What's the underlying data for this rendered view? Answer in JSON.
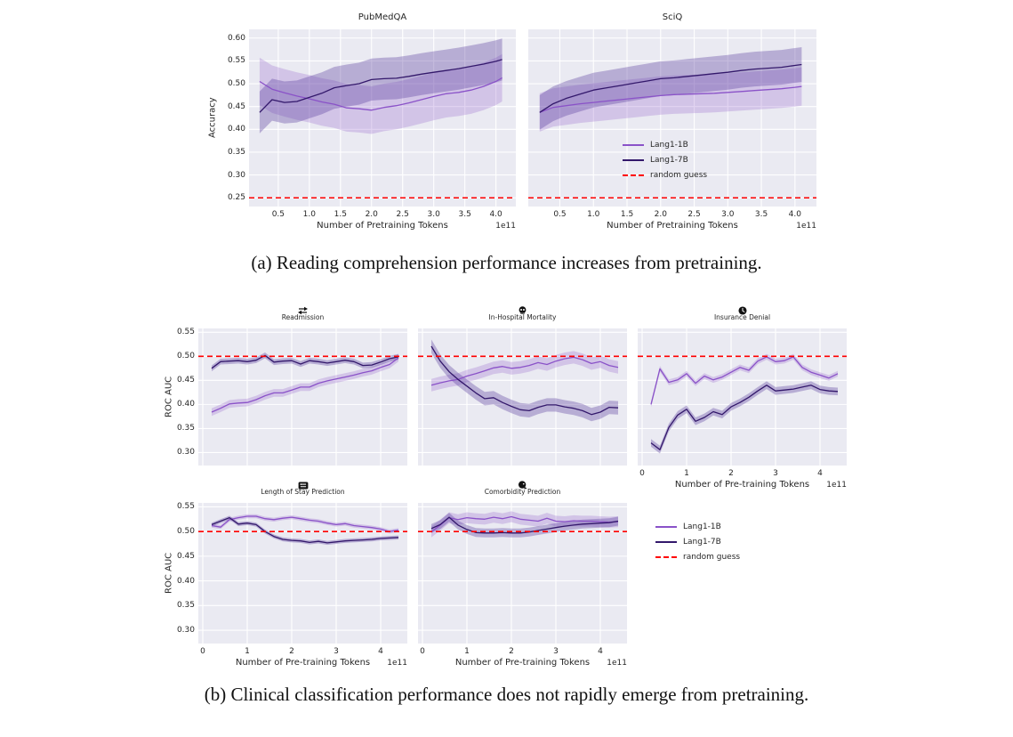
{
  "captions": {
    "a": "(a) Reading comprehension performance increases from pretraining.",
    "b": "(b) Clinical classification performance does not rapidly emerge from pretraining."
  },
  "legend": {
    "items": [
      {
        "label": "Lang1-1B",
        "series": "lang1_1b",
        "style": "solid"
      },
      {
        "label": "Lang1-7B",
        "series": "lang1_7b",
        "style": "solid"
      },
      {
        "label": "random guess",
        "series": "random_guess",
        "style": "dashed"
      }
    ]
  },
  "colors": {
    "lang1_1b": "#8a52c8",
    "lang1_7b": "#33186b",
    "lang1_1b_band": "rgba(138,82,200,0.25)",
    "lang1_7b_band": "rgba(90,61,158,0.35)",
    "random_guess": "#ff0000",
    "plot_bg": "#eaeaf2",
    "grid": "#ffffff",
    "text": "#262626"
  },
  "chart_data": [
    {
      "id": "pubmedqa",
      "type": "line",
      "title": "PubMedQA",
      "icon": null,
      "xlabel": "Number of Pretraining Tokens",
      "ylabel": "Accuracy",
      "x_offset_label": "1e11",
      "xlim": [
        0.03,
        4.32
      ],
      "ylim": [
        0.231,
        0.619
      ],
      "xticks": {
        "values": [
          0.5,
          1.0,
          1.5,
          2.0,
          2.5,
          3.0,
          3.5,
          4.0
        ],
        "labels": [
          "0.5",
          "1.0",
          "1.5",
          "2.0",
          "2.5",
          "3.0",
          "3.5",
          "4.0"
        ]
      },
      "yticks": {
        "values": [
          0.25,
          0.3,
          0.35,
          0.4,
          0.45,
          0.5,
          0.55,
          0.6
        ],
        "labels": [
          "0.25",
          "0.30",
          "0.35",
          "0.40",
          "0.45",
          "0.50",
          "0.55",
          "0.60"
        ]
      },
      "random_guess": 0.25,
      "x": [
        0.2,
        0.4,
        0.6,
        0.8,
        1.0,
        1.2,
        1.4,
        1.6,
        1.8,
        2.0,
        2.2,
        2.4,
        2.6,
        2.8,
        3.0,
        3.2,
        3.4,
        3.6,
        3.8,
        4.0,
        4.1
      ],
      "series": [
        {
          "name": "Lang1-1B",
          "key": "lang1_1b",
          "band": 0.052,
          "y": [
            0.505,
            0.488,
            0.48,
            0.473,
            0.467,
            0.46,
            0.455,
            0.447,
            0.445,
            0.442,
            0.448,
            0.452,
            0.458,
            0.465,
            0.472,
            0.478,
            0.481,
            0.486,
            0.494,
            0.505,
            0.513
          ]
        },
        {
          "name": "Lang1-7B",
          "key": "lang1_7b",
          "band": 0.046,
          "y": [
            0.437,
            0.465,
            0.459,
            0.461,
            0.47,
            0.479,
            0.491,
            0.496,
            0.5,
            0.509,
            0.511,
            0.512,
            0.516,
            0.521,
            0.525,
            0.529,
            0.533,
            0.538,
            0.543,
            0.549,
            0.553
          ]
        }
      ]
    },
    {
      "id": "sciq",
      "type": "line",
      "title": "SciQ",
      "icon": null,
      "xlabel": "Number of Pretraining Tokens",
      "ylabel": null,
      "x_offset_label": "1e11",
      "xlim": [
        0.03,
        4.32
      ],
      "ylim": [
        0.231,
        0.619
      ],
      "xticks": {
        "values": [
          0.5,
          1.0,
          1.5,
          2.0,
          2.5,
          3.0,
          3.5,
          4.0
        ],
        "labels": [
          "0.5",
          "1.0",
          "1.5",
          "2.0",
          "2.5",
          "3.0",
          "3.5",
          "4.0"
        ]
      },
      "yticks": {
        "values": [
          0.25,
          0.3,
          0.35,
          0.4,
          0.45,
          0.5,
          0.55,
          0.6
        ],
        "labels": []
      },
      "random_guess": 0.25,
      "x": [
        0.2,
        0.4,
        0.6,
        0.8,
        1.0,
        1.2,
        1.4,
        1.6,
        1.8,
        2.0,
        2.2,
        2.4,
        2.6,
        2.8,
        3.0,
        3.2,
        3.4,
        3.6,
        3.8,
        4.0,
        4.1
      ],
      "series": [
        {
          "name": "Lang1-1B",
          "key": "lang1_1b",
          "band": 0.042,
          "y": [
            0.437,
            0.448,
            0.452,
            0.456,
            0.459,
            0.462,
            0.465,
            0.468,
            0.471,
            0.474,
            0.476,
            0.477,
            0.478,
            0.479,
            0.481,
            0.483,
            0.485,
            0.487,
            0.489,
            0.492,
            0.494
          ]
        },
        {
          "name": "Lang1-7B",
          "key": "lang1_7b",
          "band": 0.038,
          "y": [
            0.437,
            0.456,
            0.468,
            0.477,
            0.486,
            0.491,
            0.496,
            0.501,
            0.506,
            0.511,
            0.513,
            0.516,
            0.519,
            0.522,
            0.525,
            0.529,
            0.532,
            0.534,
            0.536,
            0.54,
            0.542
          ]
        }
      ]
    },
    {
      "id": "readmission",
      "type": "line",
      "title": "Readmission",
      "icon": "swap-arrows-icon",
      "xlabel": null,
      "ylabel": "ROC AUC",
      "x_offset_label": null,
      "xlim": [
        -0.1,
        4.6
      ],
      "ylim": [
        0.273,
        0.558
      ],
      "xticks": {
        "values": [
          0,
          1,
          2,
          3,
          4
        ],
        "labels": []
      },
      "yticks": {
        "values": [
          0.3,
          0.35,
          0.4,
          0.45,
          0.5,
          0.55
        ],
        "labels": [
          "0.30",
          "0.35",
          "0.40",
          "0.45",
          "0.50",
          "0.55"
        ]
      },
      "random_guess": 0.5,
      "x": [
        0.2,
        0.4,
        0.6,
        0.8,
        1.0,
        1.2,
        1.4,
        1.6,
        1.8,
        2.0,
        2.2,
        2.4,
        2.6,
        2.8,
        3.0,
        3.2,
        3.4,
        3.6,
        3.8,
        4.0,
        4.2,
        4.4
      ],
      "series": [
        {
          "name": "Lang1-1B",
          "key": "lang1_1b",
          "band": 0.008,
          "y": [
            0.384,
            0.392,
            0.401,
            0.403,
            0.404,
            0.41,
            0.418,
            0.424,
            0.424,
            0.43,
            0.436,
            0.436,
            0.444,
            0.449,
            0.453,
            0.457,
            0.461,
            0.466,
            0.47,
            0.477,
            0.483,
            0.497
          ]
        },
        {
          "name": "Lang1-7B",
          "key": "lang1_7b",
          "band": 0.006,
          "y": [
            0.475,
            0.489,
            0.49,
            0.491,
            0.489,
            0.492,
            0.502,
            0.488,
            0.49,
            0.491,
            0.484,
            0.491,
            0.489,
            0.486,
            0.489,
            0.492,
            0.489,
            0.481,
            0.482,
            0.488,
            0.495,
            0.499
          ]
        }
      ]
    },
    {
      "id": "in-hospital-mortality",
      "type": "line",
      "title": "In-Hospital Mortality",
      "icon": "skull-icon",
      "xlabel": null,
      "ylabel": null,
      "x_offset_label": null,
      "xlim": [
        -0.1,
        4.6
      ],
      "ylim": [
        0.273,
        0.558
      ],
      "xticks": {
        "values": [
          0,
          1,
          2,
          3,
          4
        ],
        "labels": []
      },
      "yticks": {
        "values": [
          0.3,
          0.35,
          0.4,
          0.45,
          0.5,
          0.55
        ],
        "labels": []
      },
      "random_guess": 0.5,
      "x": [
        0.2,
        0.4,
        0.6,
        0.8,
        1.0,
        1.2,
        1.4,
        1.6,
        1.8,
        2.0,
        2.2,
        2.4,
        2.6,
        2.8,
        3.0,
        3.2,
        3.4,
        3.6,
        3.8,
        4.0,
        4.2,
        4.4
      ],
      "series": [
        {
          "name": "Lang1-1B",
          "key": "lang1_1b",
          "band": 0.013,
          "y": [
            0.44,
            0.445,
            0.449,
            0.452,
            0.459,
            0.464,
            0.47,
            0.476,
            0.479,
            0.475,
            0.477,
            0.481,
            0.487,
            0.483,
            0.49,
            0.495,
            0.498,
            0.493,
            0.485,
            0.489,
            0.481,
            0.477
          ]
        },
        {
          "name": "Lang1-7B",
          "key": "lang1_7b",
          "band": 0.014,
          "y": [
            0.521,
            0.49,
            0.468,
            0.452,
            0.438,
            0.424,
            0.412,
            0.414,
            0.404,
            0.396,
            0.389,
            0.387,
            0.394,
            0.399,
            0.399,
            0.395,
            0.392,
            0.387,
            0.379,
            0.384,
            0.394,
            0.393
          ]
        }
      ]
    },
    {
      "id": "insurance-denial",
      "type": "line",
      "title": "Insurance Denial",
      "icon": "clock-icon",
      "xlabel": "Number of Pre-training Tokens",
      "ylabel": null,
      "x_offset_label": "1e11",
      "xlim": [
        -0.1,
        4.6
      ],
      "ylim": [
        0.273,
        0.558
      ],
      "xticks": {
        "values": [
          0,
          1,
          2,
          3,
          4
        ],
        "labels": [
          "0",
          "1",
          "2",
          "3",
          "4"
        ]
      },
      "yticks": {
        "values": [
          0.3,
          0.35,
          0.4,
          0.45,
          0.5,
          0.55
        ],
        "labels": []
      },
      "random_guess": 0.5,
      "x": [
        0.2,
        0.4,
        0.6,
        0.8,
        1.0,
        1.2,
        1.4,
        1.6,
        1.8,
        2.0,
        2.2,
        2.4,
        2.6,
        2.8,
        3.0,
        3.2,
        3.4,
        3.6,
        3.8,
        4.0,
        4.2,
        4.4
      ],
      "series": [
        {
          "name": "Lang1-1B",
          "key": "lang1_1b",
          "band": 0.006,
          "y": [
            0.4,
            0.474,
            0.446,
            0.451,
            0.464,
            0.444,
            0.459,
            0.451,
            0.457,
            0.467,
            0.477,
            0.471,
            0.49,
            0.499,
            0.489,
            0.491,
            0.499,
            0.477,
            0.467,
            0.461,
            0.455,
            0.464
          ]
        },
        {
          "name": "Lang1-7B",
          "key": "lang1_7b",
          "band": 0.008,
          "y": [
            0.32,
            0.306,
            0.352,
            0.378,
            0.39,
            0.365,
            0.373,
            0.385,
            0.379,
            0.395,
            0.404,
            0.415,
            0.428,
            0.44,
            0.428,
            0.43,
            0.432,
            0.436,
            0.44,
            0.431,
            0.428,
            0.427
          ]
        }
      ]
    },
    {
      "id": "length-of-stay",
      "type": "line",
      "title": "Length of Stay Prediction",
      "icon": "length-of-stay-icon",
      "xlabel": "Number of Pre-training Tokens",
      "ylabel": "ROC AUC",
      "x_offset_label": "1e11",
      "xlim": [
        -0.1,
        4.6
      ],
      "ylim": [
        0.273,
        0.558
      ],
      "xticks": {
        "values": [
          0,
          1,
          2,
          3,
          4
        ],
        "labels": [
          "0",
          "1",
          "2",
          "3",
          "4"
        ]
      },
      "yticks": {
        "values": [
          0.3,
          0.35,
          0.4,
          0.45,
          0.5,
          0.55
        ],
        "labels": [
          "0.30",
          "0.35",
          "0.40",
          "0.45",
          "0.50",
          "0.55"
        ]
      },
      "random_guess": 0.5,
      "x": [
        0.2,
        0.4,
        0.6,
        0.8,
        1.0,
        1.2,
        1.4,
        1.6,
        1.8,
        2.0,
        2.2,
        2.4,
        2.6,
        2.8,
        3.0,
        3.2,
        3.4,
        3.6,
        3.8,
        4.0,
        4.2,
        4.4
      ],
      "series": [
        {
          "name": "Lang1-1B",
          "key": "lang1_1b",
          "band": 0.004,
          "y": [
            0.512,
            0.509,
            0.524,
            0.528,
            0.531,
            0.531,
            0.526,
            0.524,
            0.527,
            0.529,
            0.526,
            0.523,
            0.521,
            0.517,
            0.514,
            0.516,
            0.512,
            0.51,
            0.508,
            0.505,
            0.5,
            0.503
          ]
        },
        {
          "name": "Lang1-7B",
          "key": "lang1_7b",
          "band": 0.004,
          "y": [
            0.514,
            0.521,
            0.528,
            0.515,
            0.517,
            0.514,
            0.5,
            0.49,
            0.484,
            0.482,
            0.481,
            0.478,
            0.48,
            0.477,
            0.479,
            0.481,
            0.482,
            0.483,
            0.484,
            0.486,
            0.487,
            0.488
          ]
        }
      ]
    },
    {
      "id": "comorbidity",
      "type": "line",
      "title": "Comorbidity Prediction",
      "icon": "comorbidity-icon",
      "xlabel": "Number of Pre-training Tokens",
      "ylabel": null,
      "x_offset_label": "1e11",
      "xlim": [
        -0.1,
        4.6
      ],
      "ylim": [
        0.273,
        0.558
      ],
      "xticks": {
        "values": [
          0,
          1,
          2,
          3,
          4
        ],
        "labels": [
          "0",
          "1",
          "2",
          "3",
          "4"
        ]
      },
      "yticks": {
        "values": [
          0.3,
          0.35,
          0.4,
          0.45,
          0.5,
          0.55
        ],
        "labels": []
      },
      "random_guess": 0.5,
      "x": [
        0.2,
        0.4,
        0.6,
        0.8,
        1.0,
        1.2,
        1.4,
        1.6,
        1.8,
        2.0,
        2.2,
        2.4,
        2.6,
        2.8,
        3.0,
        3.2,
        3.4,
        3.6,
        3.8,
        4.0,
        4.2,
        4.4
      ],
      "series": [
        {
          "name": "Lang1-1B",
          "key": "lang1_1b",
          "band": 0.011,
          "y": [
            0.499,
            0.513,
            0.528,
            0.524,
            0.528,
            0.526,
            0.525,
            0.529,
            0.526,
            0.53,
            0.525,
            0.523,
            0.521,
            0.527,
            0.521,
            0.52,
            0.522,
            0.521,
            0.521,
            0.52,
            0.519,
            0.52
          ]
        },
        {
          "name": "Lang1-7B",
          "key": "lang1_7b",
          "band": 0.009,
          "y": [
            0.506,
            0.514,
            0.529,
            0.513,
            0.504,
            0.498,
            0.497,
            0.497,
            0.498,
            0.497,
            0.497,
            0.499,
            0.502,
            0.505,
            0.508,
            0.511,
            0.513,
            0.515,
            0.516,
            0.517,
            0.518,
            0.521
          ]
        }
      ]
    }
  ]
}
